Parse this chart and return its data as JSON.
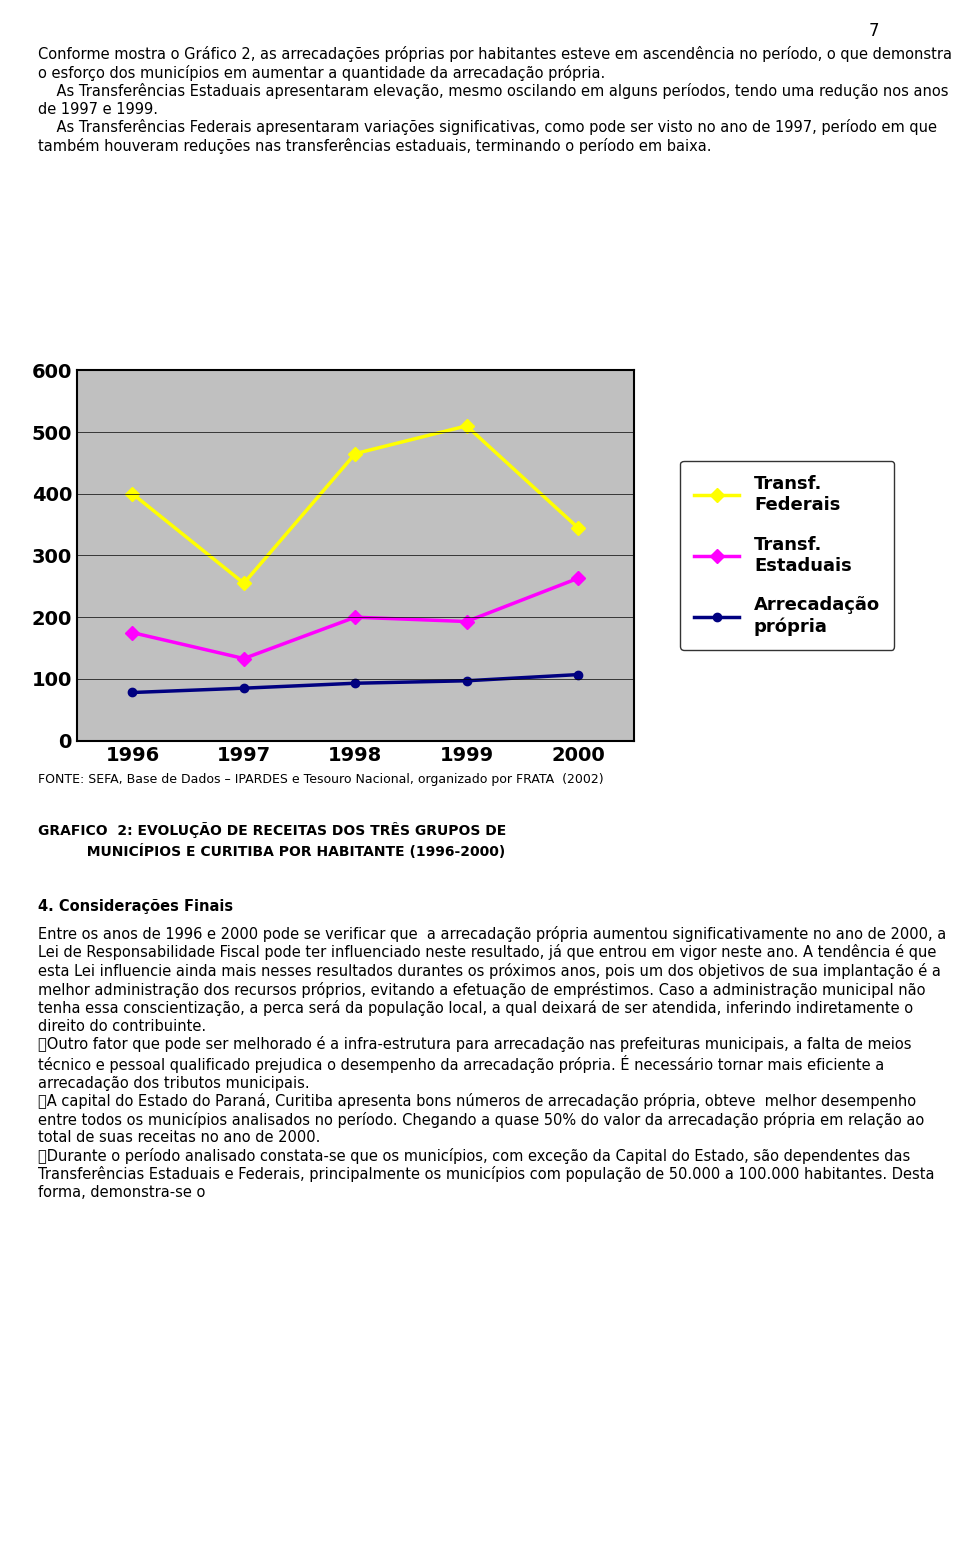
{
  "years": [
    1996,
    1997,
    1998,
    1999,
    2000
  ],
  "transf_federais": [
    400,
    255,
    465,
    510,
    345
  ],
  "transf_estaduais": [
    175,
    133,
    200,
    193,
    263
  ],
  "arrecadacao_propria": [
    78,
    85,
    93,
    97,
    107
  ],
  "ylim": [
    0,
    600
  ],
  "yticks": [
    0,
    100,
    200,
    300,
    400,
    500,
    600
  ],
  "color_federal": "#FFFF00",
  "color_estadual": "#FF00FF",
  "color_arrecadacao": "#000080",
  "plot_bg_color": "#C0C0C0",
  "fig_bg_color": "#FFFFFF",
  "legend_labels": [
    "Transf.\nFederais",
    "Transf.\nEstaduais",
    "Arrecadação\nprópria"
  ],
  "fonte_text": "FONTE: SEFA, Base de Dados – IPARDES e Tesouro Nacional, organizado por FRATA  (2002)",
  "grafico_text": "GRAFICO  2: EVOLUÇÃO DE RECEITAS DOS TRÊS GRUPOS DE\n          MUNICÍPIOS E CURITIBA POR HABITANTE (1996-2000)",
  "text_blocks": [
    "Conforme mostra o Gráfico 2, as arrecadações próprias por habitantes esteve em ascendência no período, o que demonstra o esforço dos municípios em aumentar a quantidade da arrecadação própria.",
    "As Transferências Estaduais apresentaram elevação, mesmo oscilando em alguns períodos, tendo uma redução nos anos de 1997 e 1999.",
    "As Transferências Federais apresentaram variações significativas, como pode ser visto no ano de 1997, período em que também houveram reduções nas transferências estaduais, terminando o período em baixa."
  ],
  "section4_title": "4. Considerações Finais",
  "section4_text": "Entre os anos de 1996 e 2000 pode se verificar que  a arrecadação própria aumentou significativamente no ano de 2000, a Lei de Responsabilidade Fiscal pode ter influenciado neste resultado, já que entrou em vigor neste ano. A tendência é que esta Lei influencie ainda mais nesses resultados durantes os próximos anos, pois um dos objetivos de sua implantação é a melhor administração dos recursos próprios, evitando a efetuação de empréstimos. Caso a administração municipal não tenha essa conscientização, a perca será da população local, a qual deixará de ser atendida, inferindo indiretamente o direito do contribuinte.\n\tOutro fator que pode ser melhorado é a infra-estrutura para arrecadação nas prefeituras municipais, a falta de meios técnico e pessoal qualificado prejudica o desempenho da arrecadação própria. É necessário tornar mais eficiente a arrecadação dos tributos municipais.\n\tA capital do Estado do Paraná, Curitiba apresenta bons números de arrecadação própria, obteve  melhor desempenho entre todos os municípios analisados no período. Chegando a quase 50% do valor da arrecadação própria em relação ao total de suas receitas no ano de 2000.\n\tDurante o período analisado constata-se que os municípios, com exceção da Capital do Estado, são dependentes das Transferências Estaduais e Federais, principalmente os municípios com população de 50.000 a 100.000 habitantes. Desta forma, demonstra-se o"
}
